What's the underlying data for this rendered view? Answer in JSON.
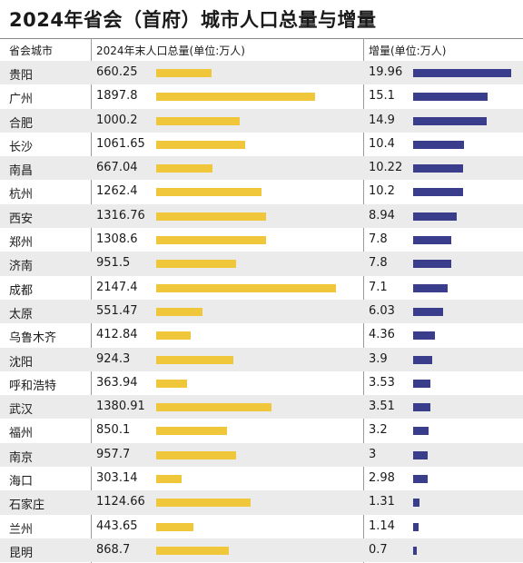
{
  "title": "2024年省会（首府）城市人口总量与增量",
  "headers": {
    "city": "省会城市",
    "population": "2024年末人口总量(单位:万人)",
    "increase": "增量(单位:万人)"
  },
  "colors": {
    "population_bar": "#f0c63a",
    "increase_bar": "#3a3d8c"
  },
  "chart_data": {
    "type": "table",
    "title": "2024年省会（首府）城市人口总量与增量",
    "columns": [
      "省会城市",
      "2024年末人口总量(单位:万人)",
      "增量(单位:万人)"
    ],
    "population_max": 2147.4,
    "increase_max": 19.96,
    "rows": [
      {
        "city": "贵阳",
        "population": "660.25",
        "increase": "19.96"
      },
      {
        "city": "广州",
        "population": "1897.8",
        "increase": "15.1"
      },
      {
        "city": "合肥",
        "population": "1000.2",
        "increase": "14.9"
      },
      {
        "city": "长沙",
        "population": "1061.65",
        "increase": "10.4"
      },
      {
        "city": "南昌",
        "population": "667.04",
        "increase": "10.22"
      },
      {
        "city": "杭州",
        "population": "1262.4",
        "increase": "10.2"
      },
      {
        "city": "西安",
        "population": "1316.76",
        "increase": "8.94"
      },
      {
        "city": "郑州",
        "population": "1308.6",
        "increase": "7.8"
      },
      {
        "city": "济南",
        "population": "951.5",
        "increase": "7.8"
      },
      {
        "city": "成都",
        "population": "2147.4",
        "increase": "7.1"
      },
      {
        "city": "太原",
        "population": "551.47",
        "increase": "6.03"
      },
      {
        "city": "乌鲁木齐",
        "population": "412.84",
        "increase": "4.36"
      },
      {
        "city": "沈阳",
        "population": "924.3",
        "increase": "3.9"
      },
      {
        "city": "呼和浩特",
        "population": "363.94",
        "increase": "3.53"
      },
      {
        "city": "武汉",
        "population": "1380.91",
        "increase": "3.51"
      },
      {
        "city": "福州",
        "population": "850.1",
        "increase": "3.2"
      },
      {
        "city": "南京",
        "population": "957.7",
        "increase": "3"
      },
      {
        "city": "海口",
        "population": "303.14",
        "increase": "2.98"
      },
      {
        "city": "石家庄",
        "population": "1124.66",
        "increase": "1.31"
      },
      {
        "city": "兰州",
        "population": "443.65",
        "increase": "1.14"
      },
      {
        "city": "昆明",
        "population": "868.7",
        "increase": "0.7"
      }
    ]
  }
}
